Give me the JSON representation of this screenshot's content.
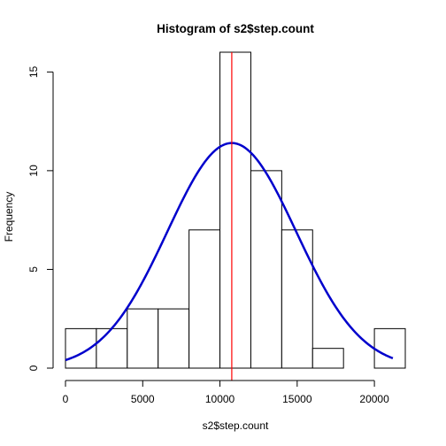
{
  "chart_data": {
    "type": "bar",
    "title": "Histogram of s2$step.count",
    "xlabel": "s2$step.count",
    "ylabel": "Frequency",
    "bins": [
      {
        "start": 0,
        "end": 2000,
        "count": 2
      },
      {
        "start": 2000,
        "end": 4000,
        "count": 2
      },
      {
        "start": 4000,
        "end": 6000,
        "count": 3
      },
      {
        "start": 6000,
        "end": 8000,
        "count": 3
      },
      {
        "start": 8000,
        "end": 10000,
        "count": 7
      },
      {
        "start": 10000,
        "end": 12000,
        "count": 16
      },
      {
        "start": 12000,
        "end": 14000,
        "count": 10
      },
      {
        "start": 14000,
        "end": 16000,
        "count": 7
      },
      {
        "start": 16000,
        "end": 18000,
        "count": 1
      },
      {
        "start": 18000,
        "end": 20000,
        "count": 0
      },
      {
        "start": 20000,
        "end": 22000,
        "count": 2
      }
    ],
    "xlim": [
      0,
      22000
    ],
    "ylim": [
      0,
      16
    ],
    "xticks": [
      0,
      5000,
      10000,
      15000,
      20000
    ],
    "yticks": [
      0,
      5,
      10,
      15
    ],
    "xtick_labels": [
      "0",
      "5000",
      "10000",
      "15000",
      "20000"
    ],
    "ytick_labels": [
      "0",
      "5",
      "10",
      "15"
    ],
    "mean_line": {
      "x": 10766,
      "color": "#ff0000"
    },
    "normal_curve": {
      "color": "#0000cc",
      "x_start": 0,
      "x_end": 21194,
      "peak_x": 10766,
      "peak_y": 11.4,
      "sd": 4170
    },
    "grid": false,
    "legend": "none",
    "bar_fill": "#ffffff",
    "bar_stroke": "#000000"
  }
}
